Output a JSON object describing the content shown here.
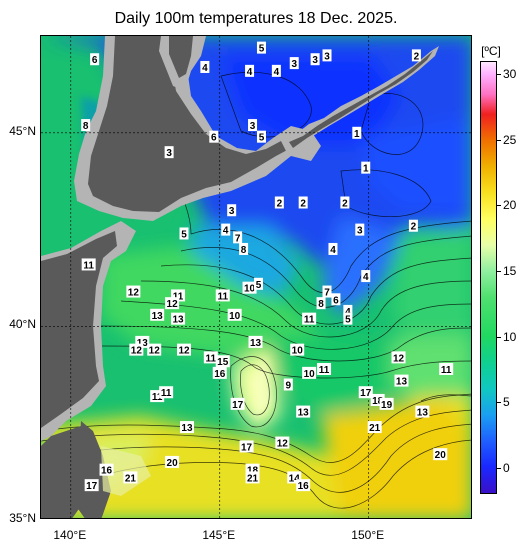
{
  "title": "Daily 100m temperatures 18 Dec. 2025.",
  "colorbar": {
    "unit": "[ºC]",
    "ticks": [
      30,
      25,
      20,
      15,
      10,
      5,
      0
    ],
    "min": -2,
    "max": 31,
    "stops": [
      {
        "t": -2,
        "c": "#3a10c8"
      },
      {
        "t": 0,
        "c": "#1a28ff"
      },
      {
        "t": 2,
        "c": "#1f5fff"
      },
      {
        "t": 4,
        "c": "#1aa0f0"
      },
      {
        "t": 6,
        "c": "#10c8c0"
      },
      {
        "t": 8,
        "c": "#10d090"
      },
      {
        "t": 10,
        "c": "#20d860"
      },
      {
        "t": 13,
        "c": "#50e070"
      },
      {
        "t": 15,
        "c": "#90f0a0"
      },
      {
        "t": 17,
        "c": "#e8ffa8"
      },
      {
        "t": 19,
        "c": "#ffff60"
      },
      {
        "t": 21,
        "c": "#f8e020"
      },
      {
        "t": 23,
        "c": "#f0b000"
      },
      {
        "t": 25,
        "c": "#f07000"
      },
      {
        "t": 27,
        "c": "#f02020"
      },
      {
        "t": 28.5,
        "c": "#ff70c0"
      },
      {
        "t": 30,
        "c": "#ffb0ff"
      },
      {
        "t": 31,
        "c": "#ffe8ff"
      }
    ]
  },
  "axes": {
    "lat_labels": [
      "45°N",
      "40°N",
      "35°N"
    ],
    "lat_values": [
      45,
      40,
      35
    ],
    "lon_labels": [
      "140°E",
      "145°E",
      "150°E"
    ],
    "lon_values": [
      140,
      145,
      150
    ],
    "lon_range": [
      139,
      153.5
    ],
    "lat_range": [
      35,
      47.5
    ]
  },
  "colors": {
    "land": "#5a5a5a",
    "no_data": "#b4b4b4"
  },
  "temperature_labels": [
    {
      "v": "6",
      "lon": 140.8,
      "lat": 46.9
    },
    {
      "v": "8",
      "lon": 140.5,
      "lat": 45.2
    },
    {
      "v": "4",
      "lon": 144.5,
      "lat": 46.7
    },
    {
      "v": "3",
      "lon": 143.3,
      "lat": 44.5
    },
    {
      "v": "6",
      "lon": 144.8,
      "lat": 44.9
    },
    {
      "v": "5",
      "lon": 146.4,
      "lat": 47.2
    },
    {
      "v": "4",
      "lon": 146.0,
      "lat": 46.6
    },
    {
      "v": "4",
      "lon": 146.9,
      "lat": 46.6
    },
    {
      "v": "3",
      "lon": 146.1,
      "lat": 45.2
    },
    {
      "v": "5",
      "lon": 146.4,
      "lat": 44.9
    },
    {
      "v": "3",
      "lon": 147.5,
      "lat": 46.8
    },
    {
      "v": "3",
      "lon": 148.2,
      "lat": 46.9
    },
    {
      "v": "3",
      "lon": 148.6,
      "lat": 47.0
    },
    {
      "v": "2",
      "lon": 151.6,
      "lat": 47.0
    },
    {
      "v": "1",
      "lon": 149.6,
      "lat": 45.0
    },
    {
      "v": "1",
      "lon": 149.9,
      "lat": 44.1
    },
    {
      "v": "3",
      "lon": 145.4,
      "lat": 43.0
    },
    {
      "v": "2",
      "lon": 147.0,
      "lat": 43.2
    },
    {
      "v": "2",
      "lon": 147.8,
      "lat": 43.2
    },
    {
      "v": "2",
      "lon": 149.2,
      "lat": 43.2
    },
    {
      "v": "2",
      "lon": 151.5,
      "lat": 42.6
    },
    {
      "v": "3",
      "lon": 149.7,
      "lat": 42.5
    },
    {
      "v": "5",
      "lon": 143.8,
      "lat": 42.4
    },
    {
      "v": "4",
      "lon": 145.2,
      "lat": 42.5
    },
    {
      "v": "7",
      "lon": 145.6,
      "lat": 42.3
    },
    {
      "v": "8",
      "lon": 145.8,
      "lat": 42.0
    },
    {
      "v": "4",
      "lon": 148.8,
      "lat": 42.0
    },
    {
      "v": "4",
      "lon": 149.9,
      "lat": 41.3
    },
    {
      "v": "11",
      "lon": 140.6,
      "lat": 41.6
    },
    {
      "v": "12",
      "lon": 142.1,
      "lat": 40.9
    },
    {
      "v": "11",
      "lon": 143.6,
      "lat": 40.8
    },
    {
      "v": "12",
      "lon": 143.4,
      "lat": 40.6
    },
    {
      "v": "13",
      "lon": 142.9,
      "lat": 40.3
    },
    {
      "v": "13",
      "lon": 143.6,
      "lat": 40.2
    },
    {
      "v": "11",
      "lon": 145.1,
      "lat": 40.8
    },
    {
      "v": "10",
      "lon": 146.0,
      "lat": 41.0
    },
    {
      "v": "5",
      "lon": 146.3,
      "lat": 41.1
    },
    {
      "v": "10",
      "lon": 145.5,
      "lat": 40.3
    },
    {
      "v": "7",
      "lon": 148.6,
      "lat": 40.9
    },
    {
      "v": "6",
      "lon": 148.9,
      "lat": 40.7
    },
    {
      "v": "8",
      "lon": 148.4,
      "lat": 40.6
    },
    {
      "v": "11",
      "lon": 148.0,
      "lat": 40.2
    },
    {
      "v": "4",
      "lon": 149.3,
      "lat": 40.4
    },
    {
      "v": "5",
      "lon": 149.3,
      "lat": 40.2
    },
    {
      "v": "13",
      "lon": 142.4,
      "lat": 39.6
    },
    {
      "v": "12",
      "lon": 142.2,
      "lat": 39.4
    },
    {
      "v": "12",
      "lon": 142.8,
      "lat": 39.4
    },
    {
      "v": "12",
      "lon": 143.8,
      "lat": 39.4
    },
    {
      "v": "11",
      "lon": 144.7,
      "lat": 39.2
    },
    {
      "v": "15",
      "lon": 145.1,
      "lat": 39.1
    },
    {
      "v": "16",
      "lon": 145.0,
      "lat": 38.8
    },
    {
      "v": "13",
      "lon": 146.2,
      "lat": 39.6
    },
    {
      "v": "10",
      "lon": 147.6,
      "lat": 39.4
    },
    {
      "v": "9",
      "lon": 147.3,
      "lat": 38.5
    },
    {
      "v": "10",
      "lon": 148.0,
      "lat": 38.8
    },
    {
      "v": "11",
      "lon": 148.5,
      "lat": 38.9
    },
    {
      "v": "12",
      "lon": 151.0,
      "lat": 39.2
    },
    {
      "v": "11",
      "lon": 152.6,
      "lat": 38.9
    },
    {
      "v": "13",
      "lon": 151.1,
      "lat": 38.6
    },
    {
      "v": "11",
      "lon": 142.9,
      "lat": 38.2
    },
    {
      "v": "11",
      "lon": 143.2,
      "lat": 38.3
    },
    {
      "v": "17",
      "lon": 145.6,
      "lat": 38.0
    },
    {
      "v": "13",
      "lon": 143.9,
      "lat": 37.4
    },
    {
      "v": "13",
      "lon": 147.8,
      "lat": 37.8
    },
    {
      "v": "17",
      "lon": 149.9,
      "lat": 38.3
    },
    {
      "v": "18",
      "lon": 150.3,
      "lat": 38.1
    },
    {
      "v": "19",
      "lon": 150.6,
      "lat": 38.0
    },
    {
      "v": "13",
      "lon": 151.8,
      "lat": 37.8
    },
    {
      "v": "21",
      "lon": 150.2,
      "lat": 37.4
    },
    {
      "v": "12",
      "lon": 147.1,
      "lat": 37.0
    },
    {
      "v": "17",
      "lon": 145.9,
      "lat": 36.9
    },
    {
      "v": "20",
      "lon": 143.4,
      "lat": 36.5
    },
    {
      "v": "20",
      "lon": 152.4,
      "lat": 36.7
    },
    {
      "v": "18",
      "lon": 146.1,
      "lat": 36.3
    },
    {
      "v": "21",
      "lon": 146.1,
      "lat": 36.1
    },
    {
      "v": "14",
      "lon": 147.5,
      "lat": 36.1
    },
    {
      "v": "16",
      "lon": 147.8,
      "lat": 35.9
    },
    {
      "v": "16",
      "lon": 141.2,
      "lat": 36.3
    },
    {
      "v": "21",
      "lon": 142.0,
      "lat": 36.1
    },
    {
      "v": "17",
      "lon": 140.7,
      "lat": 35.9
    }
  ]
}
